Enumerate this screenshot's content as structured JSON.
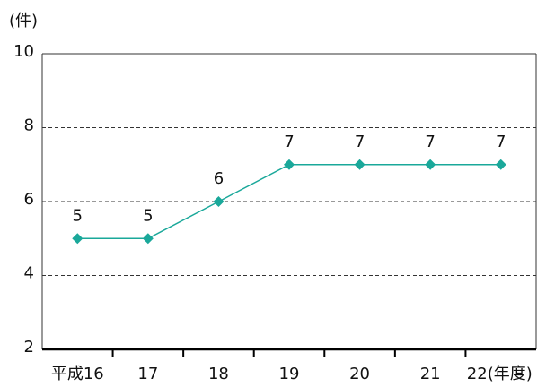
{
  "chart_data": {
    "type": "line",
    "y_unit": "(件)",
    "x_unit": "(年度)",
    "categories": [
      "平成16",
      "17",
      "18",
      "19",
      "20",
      "21",
      "22"
    ],
    "series": [
      {
        "name": null,
        "color": "#1aa89a",
        "values": [
          5,
          5,
          6,
          7,
          7,
          7,
          7
        ]
      }
    ],
    "ylim": [
      2,
      10
    ],
    "yticks": [
      2,
      4,
      6,
      8,
      10
    ],
    "grid": true,
    "value_labels_shown": true
  }
}
